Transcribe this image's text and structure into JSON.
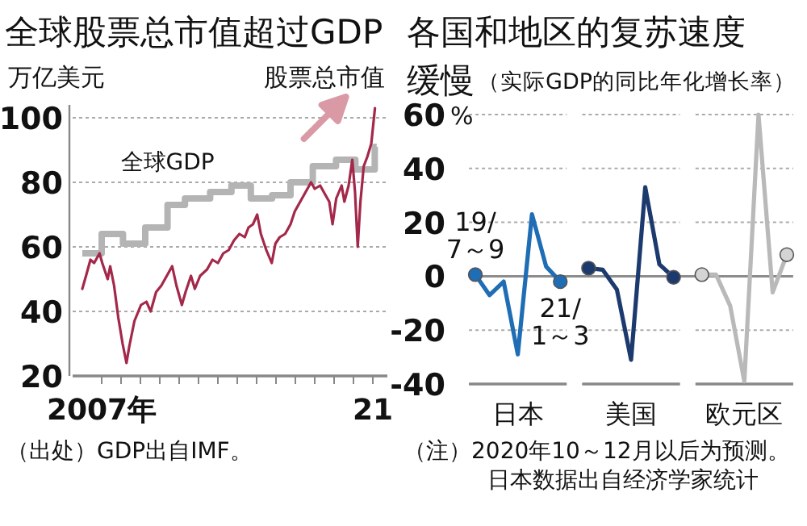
{
  "chart_data": [
    {
      "type": "line",
      "title": "全球股票总市值超过GDP",
      "ylabel": "万亿美元",
      "xlim": [
        2005.5,
        2021.75
      ],
      "ylim": [
        20,
        104
      ],
      "yticks": [
        20,
        40,
        60,
        80,
        100
      ],
      "xticks": [
        {
          "value": 2007,
          "label": "2007年"
        },
        {
          "value": 2008,
          "label": null
        },
        {
          "value": 2009,
          "label": null
        },
        {
          "value": 2010,
          "label": null
        },
        {
          "value": 2011,
          "label": null
        },
        {
          "value": 2012,
          "label": null
        },
        {
          "value": 2013,
          "label": null
        },
        {
          "value": 2014,
          "label": null
        },
        {
          "value": 2015,
          "label": null
        },
        {
          "value": 2016,
          "label": null
        },
        {
          "value": 2017,
          "label": null
        },
        {
          "value": 2018,
          "label": null
        },
        {
          "value": 2019,
          "label": null
        },
        {
          "value": 2020,
          "label": null
        },
        {
          "value": 2021,
          "label": "21"
        }
      ],
      "grid": "y",
      "annotations": [
        "（出处）GDP出自IMF。"
      ],
      "series": [
        {
          "name": "全球GDP",
          "type": "step",
          "color": "#b4b4b4",
          "x": [
            2006,
            2007,
            2008.1,
            2009.25,
            2010.4,
            2011.3,
            2012.6,
            2013.7,
            2014.7,
            2015.8,
            2016.75,
            2017.9,
            2019.1,
            2020.1,
            2021.1,
            2021.2
          ],
          "values": [
            58,
            64,
            61,
            66,
            73,
            75,
            77,
            79,
            75,
            76,
            80,
            85,
            87,
            84,
            91,
            91
          ]
        },
        {
          "name": "股票总市值",
          "color": "#a3284a",
          "x": [
            2006.0,
            2006.19,
            2006.42,
            2006.61,
            2006.89,
            2007.03,
            2007.31,
            2007.44,
            2007.64,
            2007.86,
            2008.08,
            2008.28,
            2008.42,
            2008.69,
            2009.03,
            2009.31,
            2009.53,
            2009.81,
            2010.08,
            2010.36,
            2010.64,
            2010.86,
            2011.14,
            2011.33,
            2011.61,
            2011.81,
            2012.08,
            2012.44,
            2012.72,
            2013.0,
            2013.28,
            2013.56,
            2013.83,
            2014.11,
            2014.39,
            2014.58,
            2014.81,
            2015.03,
            2015.22,
            2015.5,
            2015.78,
            2015.97,
            2016.19,
            2016.47,
            2016.75,
            2016.97,
            2017.25,
            2017.53,
            2017.81,
            2018.0,
            2018.28,
            2018.56,
            2018.75,
            2018.92,
            2019.11,
            2019.39,
            2019.53,
            2019.75,
            2019.94,
            2020.08,
            2020.22,
            2020.36,
            2020.53,
            2020.72,
            2020.92,
            2021.11
          ],
          "values": [
            47,
            51,
            56,
            55,
            58,
            55,
            50,
            54,
            48,
            38,
            30,
            24,
            29,
            37,
            42,
            43,
            40,
            46,
            48,
            51,
            54,
            48,
            42,
            46,
            51,
            47,
            51,
            53,
            56,
            55,
            58,
            59,
            62,
            64,
            63,
            66,
            67,
            70,
            64,
            59,
            55,
            61,
            63,
            64,
            67,
            71,
            74,
            77,
            80,
            78,
            79,
            76,
            74,
            67,
            75,
            79,
            74,
            79,
            87,
            77,
            60,
            74,
            85,
            88,
            92,
            103
          ]
        }
      ]
    },
    {
      "type": "line",
      "title": "各国和地区的复苏速度缓慢",
      "subtitle": "（实际GDP的同比年化增长率）",
      "ylabel": "%",
      "categories": [
        null,
        null,
        null,
        "日本",
        null,
        null,
        null,
        null,
        null,
        null,
        null,
        "美国",
        null,
        null,
        null,
        null,
        null,
        null,
        null,
        "欧元区",
        null,
        null,
        null
      ],
      "ylim": [
        -40,
        60
      ],
      "yticks": [
        -40,
        -20,
        0,
        20,
        40,
        60
      ],
      "grid": "y",
      "ref_lines": [
        {
          "axis": "y",
          "value": 0,
          "color": "#8c8c8c"
        }
      ],
      "annotations": [
        {
          "text": "19/7～9",
          "y": 0.6
        },
        {
          "text": "21/1～3",
          "y": -2
        },
        "（注）2020年10～12月以后为预测。日本数据出自经济学家统计"
      ],
      "series": [
        {
          "color": "#1f6db5",
          "values": [
            0.6,
            -7,
            -2,
            -29,
            23,
            3.6,
            -2,
            null,
            null,
            null,
            null,
            null,
            null,
            null,
            null,
            null,
            null,
            null,
            null,
            null,
            null,
            null,
            null
          ]
        },
        {
          "type": "scatter",
          "marker": "circle",
          "color": "#1f6db5",
          "values": [
            0.6,
            null,
            null,
            null,
            null,
            null,
            -2,
            null,
            null,
            null,
            null,
            null,
            null,
            null,
            null,
            null,
            null,
            null,
            null,
            null,
            null,
            null,
            null
          ]
        },
        {
          "color": "#1d3a6e",
          "values": [
            null,
            null,
            null,
            null,
            null,
            null,
            null,
            null,
            3,
            2.4,
            -5,
            -31,
            33,
            4.4,
            -0.4,
            null,
            null,
            null,
            null,
            null,
            null,
            null,
            null
          ]
        },
        {
          "type": "scatter",
          "marker": "circle",
          "color": "#1d3a6e",
          "values": [
            null,
            null,
            null,
            null,
            null,
            null,
            null,
            null,
            3,
            null,
            null,
            null,
            null,
            null,
            -0.4,
            null,
            null,
            null,
            null,
            null,
            null,
            null,
            null
          ]
        },
        {
          "color": "#b9b9b9",
          "values": [
            null,
            null,
            null,
            null,
            null,
            null,
            null,
            null,
            null,
            null,
            null,
            null,
            null,
            null,
            null,
            null,
            0.6,
            0.6,
            -11,
            -39,
            60,
            -6,
            8
          ]
        },
        {
          "type": "scatter",
          "marker": "circle",
          "color": "#d4d4d4",
          "values": [
            null,
            null,
            null,
            null,
            null,
            null,
            null,
            null,
            null,
            null,
            null,
            null,
            null,
            null,
            null,
            null,
            0.6,
            null,
            null,
            null,
            null,
            null,
            8
          ]
        }
      ]
    }
  ]
}
